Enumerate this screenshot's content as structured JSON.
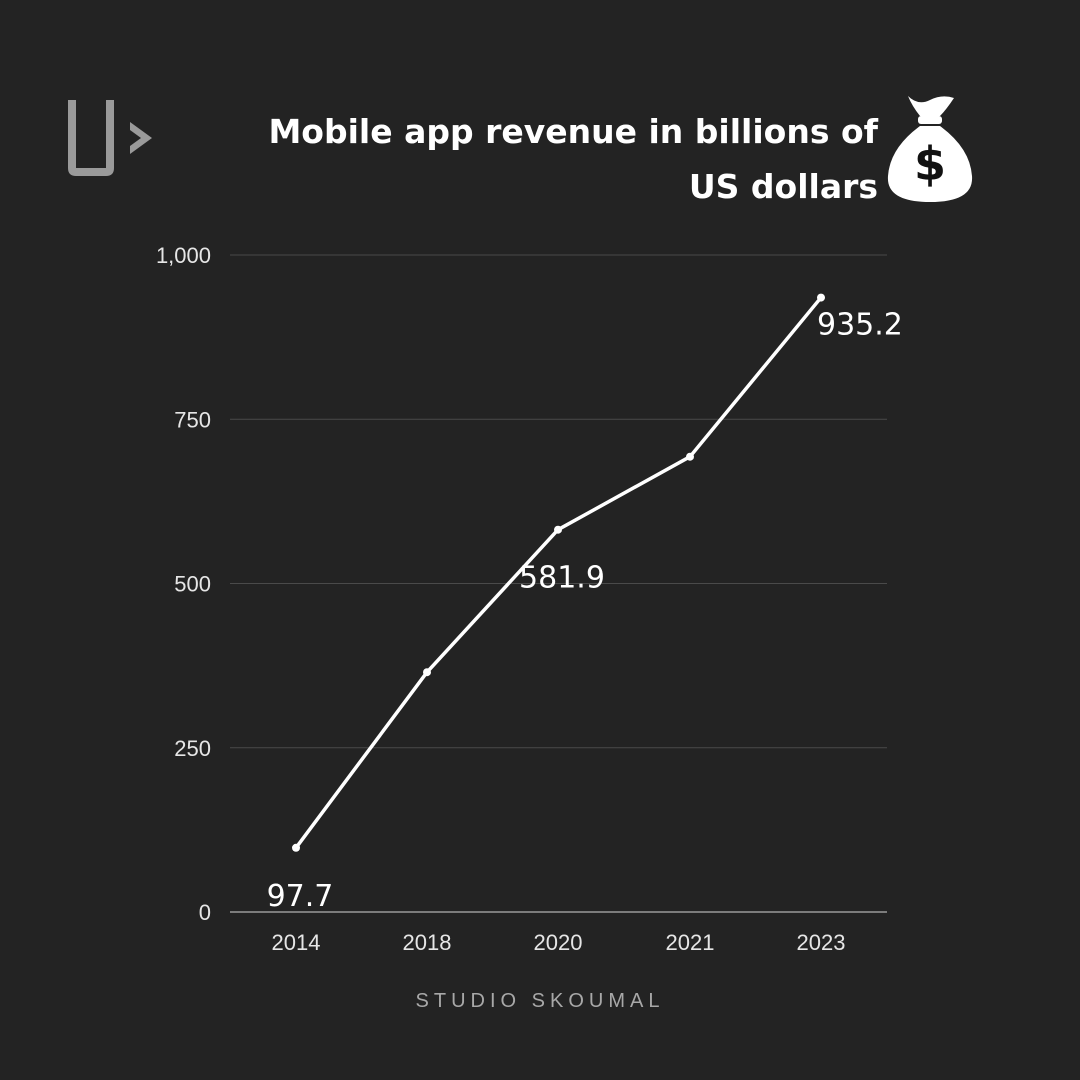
{
  "brand": {
    "logo_name": "studio-skoumal-logo"
  },
  "header": {
    "title": "Mobile app revenue in billions of US dollars",
    "icon": "money-bag-icon"
  },
  "footer": {
    "text": "STUDIO SKOUMAL"
  },
  "colors": {
    "background": "#232323",
    "line": "#ffffff",
    "grid": "#4a4a4a",
    "axis_text": "#e6e6e6"
  },
  "chart_data": {
    "type": "line",
    "title": "Mobile app revenue in billions of US dollars",
    "categories": [
      "2014",
      "2018",
      "2020",
      "2021",
      "2023"
    ],
    "series": [
      {
        "values": [
          97.7,
          365,
          581.9,
          693,
          935.2
        ]
      }
    ],
    "data_labels": [
      {
        "index": 0,
        "text": "97.7"
      },
      {
        "index": 2,
        "text": "581.9"
      },
      {
        "index": 4,
        "text": "935.2"
      }
    ],
    "ylim": [
      0,
      1000
    ],
    "yticks": [
      0,
      250,
      500,
      750,
      1000
    ],
    "ytick_labels": [
      "0",
      "250",
      "500",
      "750",
      "1,000"
    ],
    "grid": true,
    "xlabel": "",
    "ylabel": ""
  }
}
